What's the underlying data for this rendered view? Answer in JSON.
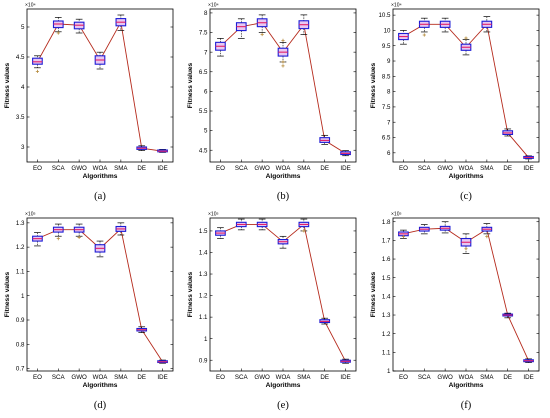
{
  "colors": {
    "box_edge": "#1c1cd6",
    "box_fill": "#e8c8f2",
    "median": "#e0206a",
    "line": "#b52a1c",
    "whisker": "#000000",
    "outlier": "#b58a3a"
  },
  "chart_data": [
    {
      "type": "box",
      "panel_label": "(a)",
      "xlabel": "Algorithms",
      "ylabel": "Fitness values",
      "exponent_label": "×10⁴",
      "categories": [
        "EO",
        "SCA",
        "GWO",
        "WOA",
        "SMA",
        "DE",
        "IDE"
      ],
      "ylim": [
        2.75,
        5.3
      ],
      "yticks": [
        3,
        3.5,
        4,
        4.5,
        5
      ],
      "median_line": [
        4.42,
        5.05,
        5.03,
        4.45,
        5.08,
        2.98,
        2.93
      ],
      "boxes": [
        {
          "median": 4.42,
          "q1": 4.38,
          "q3": 4.48,
          "wlo": 4.32,
          "whi": 4.52
        },
        {
          "median": 5.05,
          "q1": 4.99,
          "q3": 5.1,
          "wlo": 4.92,
          "whi": 5.16
        },
        {
          "median": 5.03,
          "q1": 4.97,
          "q3": 5.08,
          "wlo": 4.9,
          "whi": 5.13
        },
        {
          "median": 4.45,
          "q1": 4.38,
          "q3": 4.52,
          "wlo": 4.3,
          "whi": 4.58
        },
        {
          "median": 5.08,
          "q1": 5.02,
          "q3": 5.14,
          "wlo": 4.94,
          "whi": 5.2
        },
        {
          "median": 2.98,
          "q1": 2.96,
          "q3": 3.0,
          "wlo": 2.94,
          "whi": 3.02
        },
        {
          "median": 2.93,
          "q1": 2.92,
          "q3": 2.95,
          "wlo": 2.91,
          "whi": 2.96
        }
      ],
      "outliers": [
        [
          0,
          4.26
        ],
        [
          1,
          4.9
        ]
      ]
    },
    {
      "type": "box",
      "panel_label": "(b)",
      "xlabel": "Algorithms",
      "ylabel": "Fitness values",
      "exponent_label": "×10⁴",
      "categories": [
        "EO",
        "SCA",
        "GWO",
        "WOA",
        "SMA",
        "DE",
        "IDE"
      ],
      "ylim": [
        4.2,
        8.1
      ],
      "yticks": [
        4.5,
        5,
        5.5,
        6,
        6.5,
        7,
        7.5,
        8
      ],
      "median_line": [
        7.15,
        7.65,
        7.75,
        7.0,
        7.7,
        4.75,
        4.42
      ],
      "boxes": [
        {
          "median": 7.15,
          "q1": 7.05,
          "q3": 7.25,
          "wlo": 6.9,
          "whi": 7.35
        },
        {
          "median": 7.65,
          "q1": 7.55,
          "q3": 7.75,
          "wlo": 7.35,
          "whi": 7.85
        },
        {
          "median": 7.75,
          "q1": 7.65,
          "q3": 7.85,
          "wlo": 7.5,
          "whi": 7.95
        },
        {
          "median": 7.0,
          "q1": 6.9,
          "q3": 7.1,
          "wlo": 6.75,
          "whi": 7.25
        },
        {
          "median": 7.7,
          "q1": 7.6,
          "q3": 7.8,
          "wlo": 7.45,
          "whi": 7.95
        },
        {
          "median": 4.75,
          "q1": 4.7,
          "q3": 4.82,
          "wlo": 4.65,
          "whi": 4.88
        },
        {
          "median": 4.42,
          "q1": 4.39,
          "q3": 4.46,
          "wlo": 4.36,
          "whi": 4.49
        }
      ],
      "outliers": [
        [
          2,
          7.45
        ],
        [
          3,
          7.3
        ],
        [
          3,
          6.75
        ],
        [
          3,
          6.65
        ]
      ]
    },
    {
      "type": "box",
      "panel_label": "(c)",
      "xlabel": "Algorithms",
      "ylabel": "Fitness values",
      "exponent_label": "×10⁴",
      "categories": [
        "EO",
        "SCA",
        "GWO",
        "WOA",
        "SMA",
        "DE",
        "IDE"
      ],
      "ylim": [
        5.7,
        10.7
      ],
      "yticks": [
        6,
        6.5,
        7,
        7.5,
        8,
        8.5,
        9,
        9.5,
        10,
        10.5
      ],
      "median_line": [
        9.8,
        10.2,
        10.2,
        9.45,
        10.2,
        6.65,
        5.85
      ],
      "boxes": [
        {
          "median": 9.8,
          "q1": 9.7,
          "q3": 9.9,
          "wlo": 9.55,
          "whi": 10.0
        },
        {
          "median": 10.2,
          "q1": 10.1,
          "q3": 10.3,
          "wlo": 9.95,
          "whi": 10.4
        },
        {
          "median": 10.2,
          "q1": 10.1,
          "q3": 10.3,
          "wlo": 9.95,
          "whi": 10.4
        },
        {
          "median": 9.45,
          "q1": 9.35,
          "q3": 9.55,
          "wlo": 9.2,
          "whi": 9.7
        },
        {
          "median": 10.2,
          "q1": 10.1,
          "q3": 10.3,
          "wlo": 9.95,
          "whi": 10.45
        },
        {
          "median": 6.65,
          "q1": 6.6,
          "q3": 6.72,
          "wlo": 6.55,
          "whi": 6.78
        },
        {
          "median": 5.85,
          "q1": 5.82,
          "q3": 5.88,
          "wlo": 5.8,
          "whi": 5.9
        }
      ],
      "outliers": [
        [
          1,
          9.85
        ],
        [
          3,
          9.75
        ]
      ]
    },
    {
      "type": "box",
      "panel_label": "(d)",
      "xlabel": "Algorithms",
      "ylabel": "Fitness values",
      "exponent_label": "×10⁵",
      "categories": [
        "EO",
        "SCA",
        "GWO",
        "WOA",
        "SMA",
        "DE",
        "IDE"
      ],
      "ylim": [
        0.69,
        1.32
      ],
      "yticks": [
        0.7,
        0.8,
        0.9,
        1,
        1.1,
        1.2,
        1.3
      ],
      "median_line": [
        1.235,
        1.272,
        1.272,
        1.195,
        1.275,
        0.86,
        0.728
      ],
      "boxes": [
        {
          "median": 1.235,
          "q1": 1.225,
          "q3": 1.245,
          "wlo": 1.205,
          "whi": 1.26
        },
        {
          "median": 1.272,
          "q1": 1.262,
          "q3": 1.282,
          "wlo": 1.245,
          "whi": 1.295
        },
        {
          "median": 1.272,
          "q1": 1.262,
          "q3": 1.282,
          "wlo": 1.245,
          "whi": 1.295
        },
        {
          "median": 1.195,
          "q1": 1.18,
          "q3": 1.21,
          "wlo": 1.16,
          "whi": 1.225
        },
        {
          "median": 1.275,
          "q1": 1.265,
          "q3": 1.285,
          "wlo": 1.25,
          "whi": 1.3
        },
        {
          "median": 0.86,
          "q1": 0.855,
          "q3": 0.865,
          "wlo": 0.848,
          "whi": 0.872
        },
        {
          "median": 0.728,
          "q1": 0.725,
          "q3": 0.732,
          "wlo": 0.722,
          "whi": 0.735
        }
      ],
      "outliers": [
        [
          1,
          1.235
        ],
        [
          2,
          1.24
        ]
      ]
    },
    {
      "type": "box",
      "panel_label": "(e)",
      "xlabel": "Algorithms",
      "ylabel": "Fitness values",
      "exponent_label": "×10⁵",
      "categories": [
        "EO",
        "SCA",
        "GWO",
        "WOA",
        "SMA",
        "DE",
        "IDE"
      ],
      "ylim": [
        0.85,
        1.56
      ],
      "yticks": [
        0.9,
        1,
        1.1,
        1.2,
        1.3,
        1.4,
        1.5
      ],
      "median_line": [
        1.49,
        1.53,
        1.53,
        1.45,
        1.53,
        1.08,
        0.895
      ],
      "boxes": [
        {
          "median": 1.49,
          "q1": 1.48,
          "q3": 1.5,
          "wlo": 1.465,
          "whi": 1.515
        },
        {
          "median": 1.53,
          "q1": 1.52,
          "q3": 1.54,
          "wlo": 1.505,
          "whi": 1.555
        },
        {
          "median": 1.53,
          "q1": 1.52,
          "q3": 1.54,
          "wlo": 1.505,
          "whi": 1.555
        },
        {
          "median": 1.45,
          "q1": 1.44,
          "q3": 1.46,
          "wlo": 1.42,
          "whi": 1.475
        },
        {
          "median": 1.53,
          "q1": 1.52,
          "q3": 1.54,
          "wlo": 1.5,
          "whi": 1.555
        },
        {
          "median": 1.08,
          "q1": 1.075,
          "q3": 1.088,
          "wlo": 1.068,
          "whi": 1.095
        },
        {
          "median": 0.895,
          "q1": 0.891,
          "q3": 0.9,
          "wlo": 0.886,
          "whi": 0.905
        }
      ],
      "outliers": [
        [
          4,
          1.5
        ]
      ]
    },
    {
      "type": "box",
      "panel_label": "(f)",
      "xlabel": "Algorithms",
      "ylabel": "Fitness values",
      "exponent_label": "×10⁵",
      "categories": [
        "EO",
        "SCA",
        "GWO",
        "WOA",
        "SMA",
        "DE",
        "IDE"
      ],
      "ylim": [
        1.0,
        1.82
      ],
      "yticks": [
        1,
        1.1,
        1.2,
        1.3,
        1.4,
        1.5,
        1.6,
        1.7,
        1.8
      ],
      "median_line": [
        1.735,
        1.76,
        1.765,
        1.69,
        1.76,
        1.3,
        1.055
      ],
      "boxes": [
        {
          "median": 1.735,
          "q1": 1.725,
          "q3": 1.745,
          "wlo": 1.71,
          "whi": 1.755
        },
        {
          "median": 1.76,
          "q1": 1.75,
          "q3": 1.77,
          "wlo": 1.735,
          "whi": 1.785
        },
        {
          "median": 1.765,
          "q1": 1.755,
          "q3": 1.775,
          "wlo": 1.74,
          "whi": 1.8
        },
        {
          "median": 1.69,
          "q1": 1.67,
          "q3": 1.71,
          "wlo": 1.63,
          "whi": 1.735
        },
        {
          "median": 1.76,
          "q1": 1.75,
          "q3": 1.77,
          "wlo": 1.735,
          "whi": 1.79
        },
        {
          "median": 1.3,
          "q1": 1.295,
          "q3": 1.305,
          "wlo": 1.285,
          "whi": 1.31
        },
        {
          "median": 1.055,
          "q1": 1.05,
          "q3": 1.06,
          "wlo": 1.045,
          "whi": 1.065
        }
      ],
      "outliers": [
        [
          0,
          1.72
        ],
        [
          3,
          1.655
        ],
        [
          4,
          1.72
        ]
      ]
    }
  ]
}
